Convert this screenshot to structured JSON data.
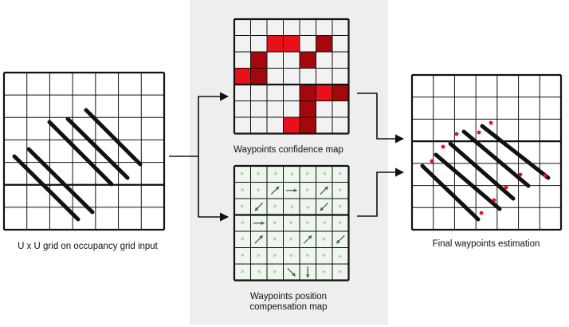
{
  "captions": {
    "input": "U x U grid on occupancy grid input",
    "confidence": "Waypoints confidence map",
    "compensation": "Waypoints position compensation map",
    "final": "Final waypoints estimation"
  },
  "colors": {
    "panel_bg": "#eeeeee",
    "grid_line": "#111111",
    "conf_low": "#f2f2f2",
    "conf_mid": "#e8111a",
    "conf_high": "#a4080d",
    "arrow_light": "#a9cfa6",
    "arrow_dark": "#3d6b3b",
    "arrow_cell": "#eef6ed",
    "waypoint": "#e8111a"
  },
  "confidence_map": [
    [
      0,
      0,
      0,
      0,
      0,
      0,
      0
    ],
    [
      0,
      0,
      2,
      2,
      0,
      3,
      0
    ],
    [
      0,
      3,
      0,
      0,
      3,
      0,
      0
    ],
    [
      2,
      3,
      0,
      0,
      0,
      0,
      0
    ],
    [
      0,
      0,
      0,
      0,
      3,
      2,
      3
    ],
    [
      0,
      0,
      0,
      0,
      3,
      0,
      0
    ],
    [
      0,
      0,
      0,
      2,
      3,
      0,
      0
    ]
  ],
  "compensation_map": [
    [
      "nw-l",
      "nw-l",
      "ne-l",
      "e-l",
      "nw-l",
      "ne-l",
      "nw-l"
    ],
    [
      "n-l",
      "nw-l",
      "ne-d",
      "e-d",
      "nw-l",
      "ne-d",
      "nw-l"
    ],
    [
      "nw-l",
      "sw-d",
      "n-l",
      "e-l",
      "s-l",
      "sw-d",
      "nw-l"
    ],
    [
      "n-l",
      "e-d",
      "nw-l",
      "nw-l",
      "nw-l",
      "ne-l",
      "nw-l"
    ],
    [
      "n-l",
      "ne-d",
      "nw-l",
      "nw-l",
      "ne-d",
      "nw-l",
      "sw-d"
    ],
    [
      "n-l",
      "nw-l",
      "nw-l",
      "nw-l",
      "nw-l",
      "nw-l",
      "sw-l"
    ],
    [
      "n-l",
      "ne-l",
      "nw-l",
      "se-d",
      "s-d",
      "nw-l",
      "nw-l"
    ]
  ]
}
